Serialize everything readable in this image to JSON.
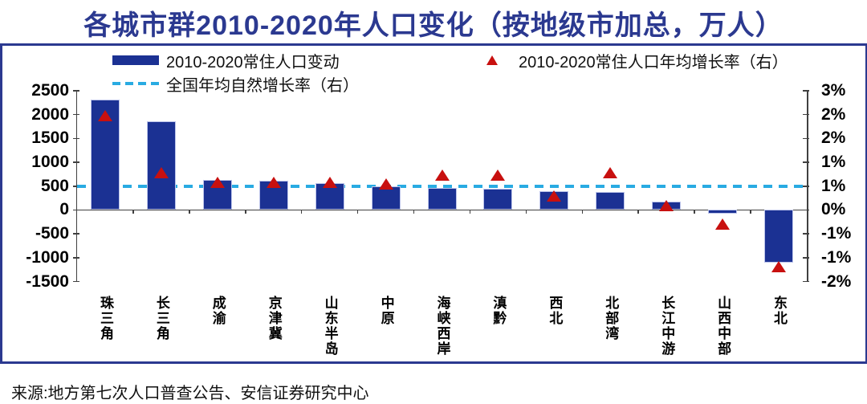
{
  "page": {
    "title": "各城市群2010-2020年人口变化（按地级市加总，万人）",
    "source": "来源:地方第七次人口普查公告、安信证券研究中心"
  },
  "colors": {
    "title": "#2B3990",
    "frame": "#2B3990",
    "bar": "#1B3193",
    "bar_edge": "#BCC4EA",
    "triangle": "#C8100F",
    "dashed_line": "#29ABE2",
    "axis_line": "#404040",
    "axis_text": "#000000"
  },
  "legend": [
    {
      "label": "2010-2020常住人口变动",
      "marker": "bar-swatch",
      "color": "#1B3193"
    },
    {
      "label": "2010-2020常住人口年均增长率（右）",
      "marker": "red-triangle",
      "color": "#C8100F"
    },
    {
      "label": "全国年均自然增长率（右）",
      "marker": "dashed-line",
      "color": "#29ABE2"
    }
  ],
  "chart_data": {
    "type": "bar",
    "title": "各城市群2010-2020年人口变化（按地级市加总，万人）",
    "categories": [
      "珠三角",
      "长三角",
      "成渝",
      "京津冀",
      "山东半岛",
      "中原",
      "海峡西岸",
      "滇黔",
      "西北",
      "北部湾",
      "长江中游",
      "山西中部",
      "东北"
    ],
    "series": [
      {
        "name": "2010-2020常住人口变动",
        "type": "bar",
        "axis": "left",
        "unit": "万人",
        "values": [
          2310,
          1860,
          630,
          615,
          570,
          490,
          455,
          440,
          395,
          380,
          175,
          -70,
          -1110
        ]
      },
      {
        "name": "2010-2020常住人口年均增长率（右）",
        "type": "scatter",
        "marker": "triangle",
        "axis": "right",
        "unit": "%",
        "values": [
          2.35,
          0.85,
          0.6,
          0.6,
          0.6,
          0.55,
          0.8,
          0.8,
          0.25,
          0.85,
          0.0,
          -0.5,
          -1.6
        ]
      },
      {
        "name": "全国年均自然增长率（右）",
        "type": "hline",
        "axis": "right",
        "unit": "%",
        "value": 0.5
      }
    ],
    "left_axis": {
      "min": -1500,
      "max": 2500,
      "ticks": [
        2500,
        2000,
        1500,
        1000,
        500,
        0,
        -500,
        -1000,
        -1500
      ]
    },
    "right_axis": {
      "min": -2,
      "max": 3,
      "tick_labels": [
        "3%",
        "2%",
        "2%",
        "1%",
        "1%",
        "0%",
        "-1%",
        "-1%",
        "-2%"
      ]
    },
    "grid": false,
    "legend_position": "top"
  }
}
